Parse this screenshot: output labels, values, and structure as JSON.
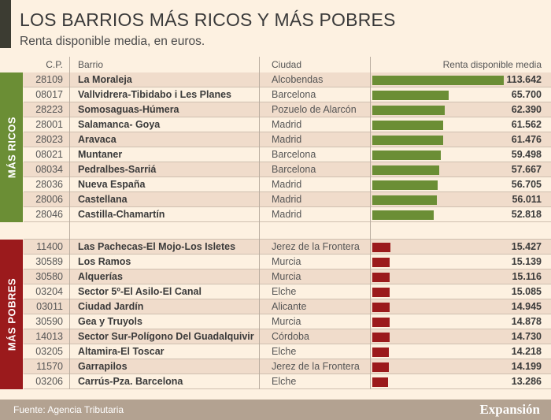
{
  "header": {
    "title": "LOS BARRIOS MÁS RICOS Y MÁS POBRES",
    "subtitle": "Renta disponible media, en euros."
  },
  "columns": {
    "cp": "C.P.",
    "barrio": "Barrio",
    "ciudad": "Ciudad",
    "renta": "Renta disponible media"
  },
  "colors": {
    "ricos": "#6b8e35",
    "pobres": "#9b1a1c",
    "footer": "#b3a291",
    "background": "#fdf1e1"
  },
  "footer": {
    "source": "Fuente: Agencia Tributaria",
    "brand": "Expansión"
  },
  "chart_data": {
    "type": "bar",
    "orientation": "horizontal",
    "title": "LOS BARRIOS MÁS RICOS Y MÁS POBRES",
    "subtitle": "Renta disponible media, en euros.",
    "xlabel": "Renta disponible media",
    "ylabel": "Barrio",
    "xlim": [
      0,
      113642
    ],
    "groups": [
      {
        "name": "MÁS RICOS",
        "rows": [
          {
            "cp": "28109",
            "barrio": "La Moraleja",
            "ciudad": "Alcobendas",
            "value": 113642,
            "label": "113.642"
          },
          {
            "cp": "08017",
            "barrio": "Vallvidrera-Tibidabo i Les Planes",
            "ciudad": "Barcelona",
            "value": 65700,
            "label": "65.700"
          },
          {
            "cp": "28223",
            "barrio": "Somosaguas-Húmera",
            "ciudad": "Pozuelo de Alarcón",
            "value": 62390,
            "label": "62.390"
          },
          {
            "cp": "28001",
            "barrio": "Salamanca- Goya",
            "ciudad": "Madrid",
            "value": 61562,
            "label": "61.562"
          },
          {
            "cp": "28023",
            "barrio": "Aravaca",
            "ciudad": "Madrid",
            "value": 61476,
            "label": "61.476"
          },
          {
            "cp": "08021",
            "barrio": "Muntaner",
            "ciudad": "Barcelona",
            "value": 59498,
            "label": "59.498"
          },
          {
            "cp": "08034",
            "barrio": "Pedralbes-Sarriá",
            "ciudad": "Barcelona",
            "value": 57667,
            "label": "57.667"
          },
          {
            "cp": "28036",
            "barrio": "Nueva España",
            "ciudad": "Madrid",
            "value": 56705,
            "label": "56.705"
          },
          {
            "cp": "28006",
            "barrio": "Castellana",
            "ciudad": "Madrid",
            "value": 56011,
            "label": "56.011"
          },
          {
            "cp": "28046",
            "barrio": "Castilla-Chamartín",
            "ciudad": "Madrid",
            "value": 52818,
            "label": "52.818"
          }
        ]
      },
      {
        "name": "MÁS POBRES",
        "rows": [
          {
            "cp": "11400",
            "barrio": "Las Pachecas-El Mojo-Los Isletes",
            "ciudad": "Jerez de la Frontera",
            "value": 15427,
            "label": "15.427"
          },
          {
            "cp": "30589",
            "barrio": "Los Ramos",
            "ciudad": "Murcia",
            "value": 15139,
            "label": "15.139"
          },
          {
            "cp": "30580",
            "barrio": "Alquerías",
            "ciudad": "Murcia",
            "value": 15116,
            "label": "15.116"
          },
          {
            "cp": "03204",
            "barrio": "Sector 5º-El Asilo-El Canal",
            "ciudad": "Elche",
            "value": 15085,
            "label": "15.085"
          },
          {
            "cp": "03011",
            "barrio": "Ciudad Jardín",
            "ciudad": "Alicante",
            "value": 14945,
            "label": "14.945"
          },
          {
            "cp": "30590",
            "barrio": "Gea y Truyols",
            "ciudad": "Murcia",
            "value": 14878,
            "label": "14.878"
          },
          {
            "cp": "14013",
            "barrio": "Sector Sur-Polígono Del Guadalquivir",
            "ciudad": "Córdoba",
            "value": 14730,
            "label": "14.730"
          },
          {
            "cp": "03205",
            "barrio": "Altamira-El Toscar",
            "ciudad": "Elche",
            "value": 14218,
            "label": "14.218"
          },
          {
            "cp": "11570",
            "barrio": "Garrapilos",
            "ciudad": "Jerez de la Frontera",
            "value": 14199,
            "label": "14.199"
          },
          {
            "cp": "03206",
            "barrio": "Carrús-Pza. Barcelona",
            "ciudad": "Elche",
            "value": 13286,
            "label": "13.286"
          }
        ]
      }
    ]
  }
}
